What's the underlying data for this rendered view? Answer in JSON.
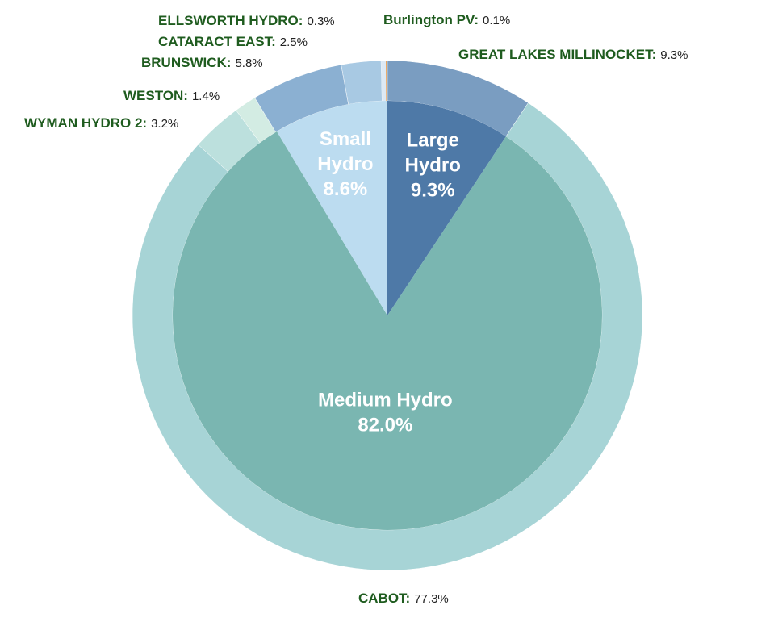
{
  "chart_data": {
    "type": "pie",
    "inner": [
      {
        "category": "Large Hydro",
        "pct_label": "9.3%",
        "value": 9.3,
        "color": "#4e79a7"
      },
      {
        "category": "Medium Hydro",
        "pct_label": "82.0%",
        "value": 82.0,
        "color": "#7ab6b1"
      },
      {
        "category": "Small Hydro",
        "pct_label": "8.6%",
        "value": 8.6,
        "color": "#bcdcf0"
      }
    ],
    "outer": [
      {
        "name": "GREAT LAKES MILLINOCKET",
        "value_label": "9.3%",
        "value": 9.3,
        "color": "#7a9dc1"
      },
      {
        "name": "CABOT",
        "value_label": "77.3%",
        "value": 77.3,
        "color": "#a7d4d6"
      },
      {
        "name": "WYMAN HYDRO 2",
        "value_label": "3.2%",
        "value": 3.2,
        "color": "#bce0dd"
      },
      {
        "name": "WESTON",
        "value_label": "1.4%",
        "value": 1.4,
        "color": "#d3ece3"
      },
      {
        "name": "BRUNSWICK",
        "value_label": "5.8%",
        "value": 5.8,
        "color": "#8bb0d2"
      },
      {
        "name": "CATARACT EAST",
        "value_label": "2.5%",
        "value": 2.5,
        "color": "#a8c9e3"
      },
      {
        "name": "ELLSWORTH HYDRO",
        "value_label": "0.3%",
        "value": 0.3,
        "color": "#dde9f4"
      },
      {
        "name": "Burlington PV",
        "value_label": "0.1%",
        "value": 0.1,
        "color": "#e8a35c"
      }
    ],
    "label_color": "#1f5c1f",
    "value_color": "#222222"
  }
}
